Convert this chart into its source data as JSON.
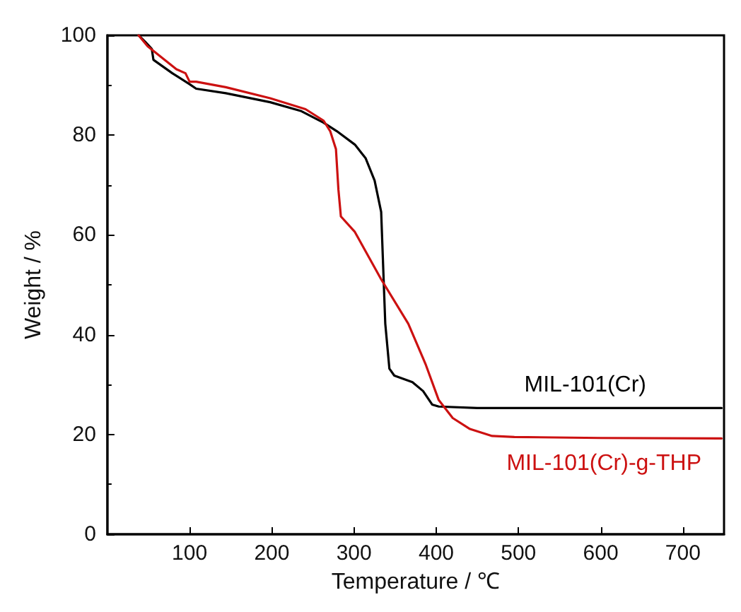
{
  "chart_data": {
    "type": "line",
    "xlabel": "Temperature / ℃",
    "ylabel": "Weight / %",
    "xlim": [
      0,
      750
    ],
    "xticks": [
      100,
      200,
      300,
      400,
      500,
      600,
      700
    ],
    "ylim": [
      0,
      100
    ],
    "yticks": [
      0,
      20,
      40,
      60,
      80,
      100
    ],
    "grid": false,
    "legend": false,
    "marker": "none",
    "line_style": "solid",
    "series": [
      {
        "name": "MIL-101(Cr)",
        "color": "#000000",
        "x": [
          38,
          46,
          54,
          56,
          79,
          100,
          108,
          144,
          198,
          236,
          263,
          279,
          301,
          314,
          325,
          333,
          336,
          338,
          343,
          349,
          371,
          384,
          395,
          403,
          450,
          550,
          650,
          747
        ],
        "values": [
          100,
          98.7,
          97.3,
          95.1,
          92.4,
          90.2,
          89.3,
          88.4,
          86.6,
          84.8,
          82.5,
          80.8,
          78.1,
          75.4,
          70.9,
          64.6,
          51.1,
          42.2,
          33.2,
          31.8,
          30.5,
          28.7,
          26,
          25.6,
          25.3,
          25.3,
          25.3,
          25.3
        ]
      },
      {
        "name": "MIL-101(Cr)-g-THP",
        "color": "#cc1111",
        "x": [
          38,
          49,
          84,
          95,
          100,
          108,
          144,
          198,
          241,
          263,
          271,
          278,
          281,
          284,
          301,
          333,
          366,
          387,
          403,
          420,
          441,
          468,
          495,
          600,
          747
        ],
        "values": [
          100,
          97.8,
          93.2,
          92.4,
          90.7,
          90.7,
          89.6,
          87.4,
          85.2,
          82.9,
          80.8,
          77.2,
          69.1,
          63.7,
          60.6,
          51.1,
          42.2,
          34.1,
          26.9,
          23.3,
          21.1,
          19.7,
          19.5,
          19.3,
          19.2
        ]
      }
    ]
  }
}
